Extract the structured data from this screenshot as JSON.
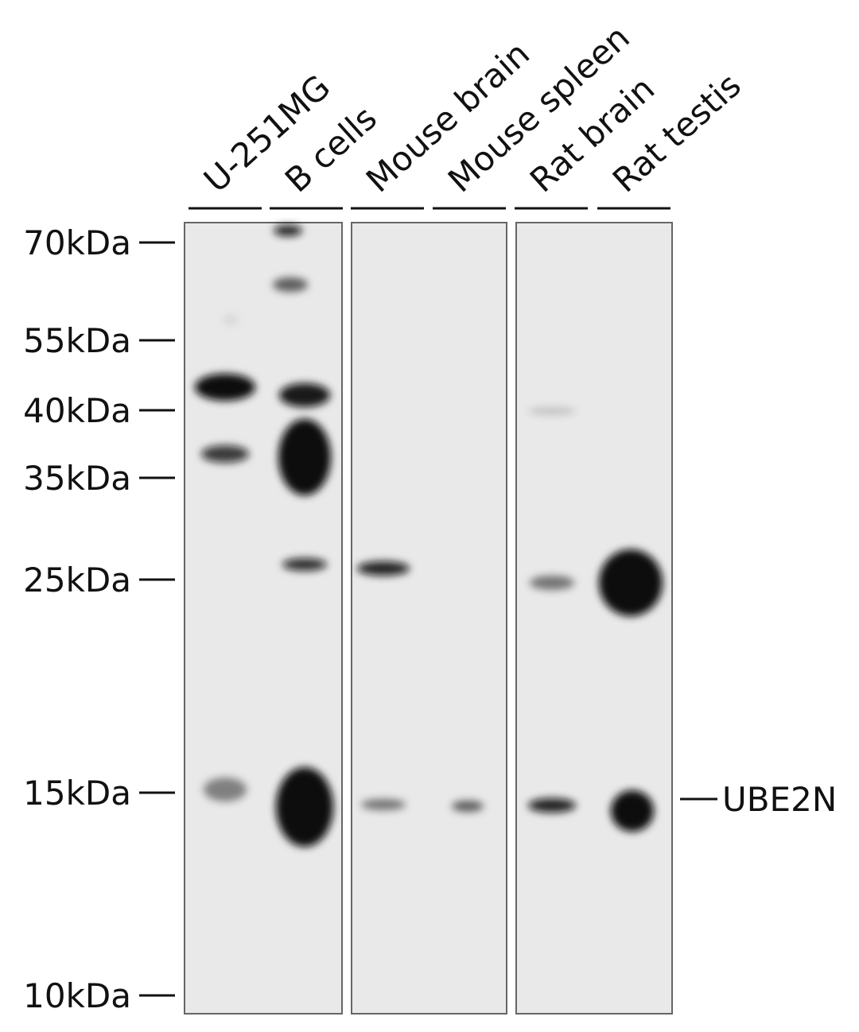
{
  "lanes": [
    "U-251MG",
    "B cells",
    "Mouse brain",
    "Mouse spleen",
    "Rat brain",
    "Rat testis"
  ],
  "markers": [
    "70kDa",
    "55kDa",
    "40kDa",
    "35kDa",
    "25kDa",
    "15kDa",
    "10kDa"
  ],
  "target": "UBE2N"
}
